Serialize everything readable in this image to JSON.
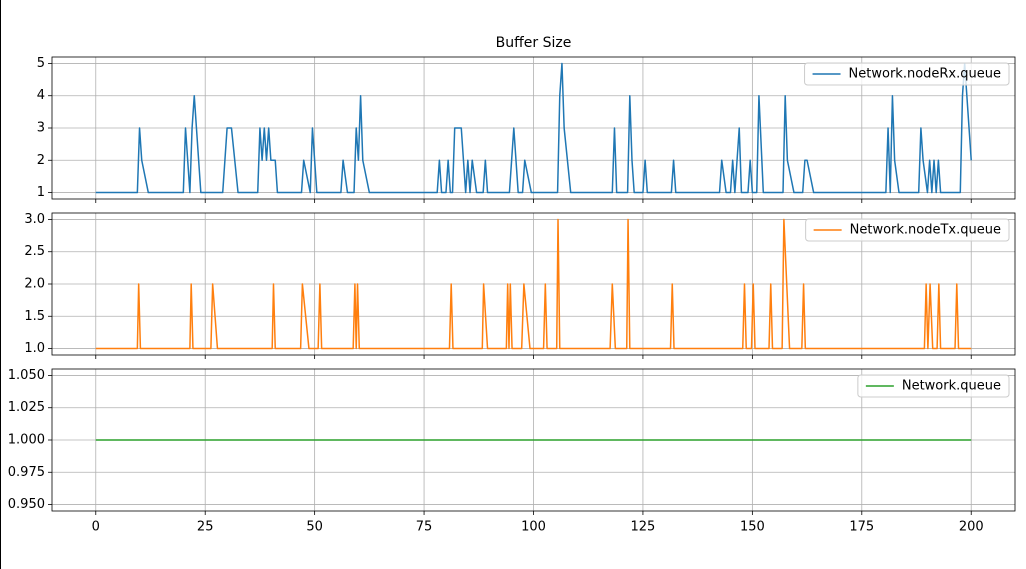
{
  "chart_data": [
    {
      "type": "line",
      "title": "Buffer Size",
      "grid": true,
      "legend": "upper right",
      "xlim": [
        -10,
        210
      ],
      "xticks": [
        0,
        25,
        50,
        75,
        100,
        125,
        150,
        175,
        200
      ],
      "ylim": [
        0.8,
        5.2
      ],
      "yticks": [
        1,
        2,
        3,
        4,
        5
      ],
      "x": [
        0,
        9.5,
        10,
        10.5,
        12,
        20,
        20.5,
        21,
        21.5,
        22,
        22.5,
        23,
        24,
        29,
        29.5,
        30,
        31,
        32.5,
        37,
        37.5,
        38,
        38.5,
        39,
        39.5,
        40,
        41,
        41.5,
        47,
        47.5,
        49,
        49.5,
        50,
        50.5,
        56,
        56.5,
        57.5,
        59,
        59.5,
        60,
        60.5,
        61,
        62.5,
        78,
        78.5,
        79,
        80,
        80.5,
        81,
        81.5,
        82,
        83.5,
        84.5,
        85,
        85.5,
        86,
        87,
        88.5,
        89,
        89.5,
        94.5,
        95,
        95.5,
        96.5,
        97.5,
        98,
        99.5,
        105.5,
        106,
        106.5,
        107,
        108.5,
        118,
        118.5,
        119,
        121.5,
        122,
        122.5,
        123,
        125,
        125.5,
        126,
        131.5,
        132,
        132.5,
        142.5,
        143,
        144,
        145,
        145.5,
        146,
        147,
        147.5,
        149,
        149.5,
        150,
        151,
        151.5,
        152.5,
        157,
        157.5,
        158,
        159.5,
        161.5,
        162,
        162.5,
        164,
        180.5,
        181,
        181.5,
        182,
        182.5,
        183.5,
        188,
        188.5,
        189,
        190,
        190.5,
        191,
        191.5,
        192,
        192.5,
        193,
        197.5,
        198,
        198.5,
        199,
        200
      ],
      "series": [
        {
          "name": "Network.nodeRx.queue",
          "color": "#1f77b4",
          "values": [
            1,
            1,
            3,
            2,
            1,
            1,
            3,
            2,
            1,
            3,
            4,
            3,
            1,
            1,
            2,
            3,
            3,
            1,
            1,
            3,
            2,
            3,
            2,
            3,
            2,
            2,
            1,
            1,
            2,
            1,
            3,
            2,
            1,
            1,
            2,
            1,
            1,
            3,
            2,
            4,
            2,
            1,
            1,
            2,
            1,
            1,
            2,
            1,
            1,
            3,
            3,
            1,
            2,
            1,
            2,
            1,
            1,
            2,
            1,
            1,
            2,
            3,
            1,
            1,
            2,
            1,
            1,
            4,
            5,
            3,
            1,
            1,
            3,
            1,
            1,
            4,
            2,
            1,
            1,
            2,
            1,
            1,
            2,
            1,
            1,
            2,
            1,
            1,
            2,
            1,
            3,
            1,
            1,
            2,
            1,
            1,
            4,
            1,
            1,
            4,
            2,
            1,
            1,
            2,
            2,
            1,
            1,
            3,
            1,
            4,
            2,
            1,
            1,
            3,
            2,
            1,
            2,
            1,
            2,
            1,
            2,
            1,
            1,
            4,
            5,
            4,
            2
          ]
        }
      ]
    },
    {
      "type": "line",
      "grid": true,
      "legend": "upper right",
      "xlim": [
        -10,
        210
      ],
      "xticks": [
        0,
        25,
        50,
        75,
        100,
        125,
        150,
        175,
        200
      ],
      "ylim": [
        0.9,
        3.1
      ],
      "yticks": [
        {
          "value": 1,
          "label": "1.0"
        },
        {
          "value": 1.5,
          "label": "1.5"
        },
        {
          "value": 2,
          "label": "2.0"
        },
        {
          "value": 2.5,
          "label": "2.5"
        },
        {
          "value": 3,
          "label": "3.0"
        }
      ],
      "x": [
        0,
        9.5,
        9.8,
        10.2,
        21.5,
        21.8,
        22.2,
        26.3,
        26.7,
        27.8,
        40.3,
        40.6,
        41,
        46.8,
        47.2,
        48.7,
        50.8,
        51.2,
        51.6,
        58.8,
        59.2,
        59.5,
        59.8,
        60.2,
        80.8,
        81.2,
        81.6,
        88.3,
        88.6,
        89.5,
        93.8,
        94.1,
        94.4,
        94.7,
        95.1,
        97.3,
        97.8,
        99.2,
        102.3,
        102.7,
        103.1,
        105.3,
        105.6,
        106,
        117.5,
        118,
        118.7,
        121.3,
        121.6,
        122,
        131.3,
        131.7,
        132.1,
        147.8,
        148.2,
        148.6,
        149.8,
        150.2,
        150.6,
        153.8,
        154.2,
        154.6,
        156.8,
        157.2,
        158.5,
        161.3,
        161.7,
        162.1,
        189.3,
        189.7,
        190.1,
        190.6,
        191.2,
        192.2,
        192.6,
        193,
        196.3,
        196.7,
        197.1,
        200
      ],
      "series": [
        {
          "name": "Network.nodeTx.queue",
          "color": "#ff7f0e",
          "values": [
            1,
            1,
            2,
            1,
            1,
            2,
            1,
            1,
            2,
            1,
            1,
            2,
            1,
            1,
            2,
            1,
            1,
            2,
            1,
            1,
            2,
            1,
            2,
            1,
            1,
            2,
            1,
            1,
            2,
            1,
            1,
            2,
            1,
            2,
            1,
            1,
            2,
            1,
            1,
            2,
            1,
            1,
            3,
            1,
            1,
            2,
            1,
            1,
            3,
            1,
            1,
            2,
            1,
            1,
            2,
            1,
            1,
            2,
            1,
            1,
            2,
            1,
            1,
            3,
            1,
            1,
            2,
            1,
            1,
            2,
            1,
            2,
            1,
            1,
            2,
            1,
            1,
            2,
            1,
            1
          ]
        }
      ]
    },
    {
      "type": "line",
      "grid": true,
      "legend": "upper right",
      "xlim": [
        -10,
        210
      ],
      "xticks": [
        0,
        25,
        50,
        75,
        100,
        125,
        150,
        175,
        200
      ],
      "ylim": [
        0.945,
        1.055
      ],
      "yticks": [
        {
          "value": 0.95,
          "label": "0.950"
        },
        {
          "value": 0.975,
          "label": "0.975"
        },
        {
          "value": 1,
          "label": "1.000"
        },
        {
          "value": 1.025,
          "label": "1.025"
        },
        {
          "value": 1.05,
          "label": "1.050"
        }
      ],
      "x": [
        0,
        200
      ],
      "series": [
        {
          "name": "Network.queue",
          "color": "#2ca02c",
          "values": [
            1,
            1
          ]
        }
      ]
    }
  ]
}
